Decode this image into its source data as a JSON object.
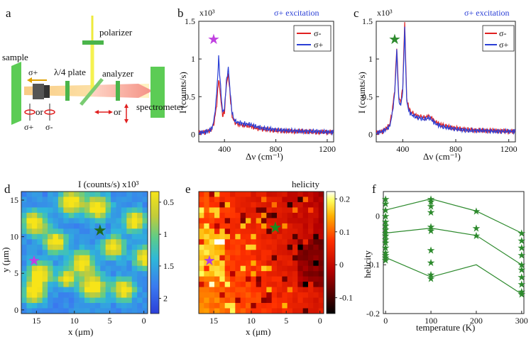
{
  "panels": {
    "a": {
      "label": "a",
      "labels": {
        "polarizer": "polarizer",
        "sample": "sample",
        "qwp": "λ/4 plate",
        "analyzer": "analyzer",
        "spectrometer": "spectrometer",
        "sigma_plus_top": "σ+",
        "or1": "or",
        "or2": "or",
        "sigma_plus_bottom": "σ+",
        "sigma_minus_bottom": "σ-"
      }
    },
    "b": {
      "label": "b",
      "type": "line",
      "title": "σ+ excitation",
      "scale_label": "x10³",
      "xlabel": "Δν (cm⁻¹)",
      "ylabel": "I (counts/s)",
      "xlim": [
        200,
        1250
      ],
      "ylim": [
        -0.1,
        1.5
      ],
      "xticks": [
        "400",
        "800",
        "1200"
      ],
      "yticks": [
        "0",
        "0.5",
        "1",
        "1.5"
      ],
      "legend": [
        "σ-",
        "σ+"
      ],
      "series": [
        {
          "name": "σ-",
          "color": "#e02020",
          "x": [
            200,
            250,
            300,
            320,
            340,
            355,
            370,
            385,
            400,
            415,
            430,
            445,
            460,
            480,
            500,
            550,
            600,
            650,
            700,
            800,
            900,
            1000,
            1100,
            1200,
            1250
          ],
          "y": [
            0.02,
            0.03,
            0.06,
            0.16,
            0.4,
            0.74,
            0.5,
            0.25,
            0.3,
            0.66,
            0.8,
            0.5,
            0.24,
            0.16,
            0.14,
            0.12,
            0.11,
            0.08,
            0.07,
            0.05,
            0.04,
            0.04,
            0.03,
            0.03,
            0.03
          ]
        },
        {
          "name": "σ+",
          "color": "#2a3fd6",
          "x": [
            200,
            250,
            300,
            320,
            340,
            355,
            370,
            385,
            400,
            415,
            430,
            445,
            460,
            480,
            500,
            550,
            600,
            650,
            700,
            800,
            900,
            1000,
            1100,
            1200,
            1250
          ],
          "y": [
            0.02,
            0.03,
            0.07,
            0.2,
            0.55,
            1.02,
            0.62,
            0.3,
            0.34,
            0.7,
            0.88,
            0.55,
            0.27,
            0.18,
            0.16,
            0.14,
            0.13,
            0.1,
            0.08,
            0.06,
            0.05,
            0.04,
            0.04,
            0.03,
            0.03
          ]
        }
      ]
    },
    "c": {
      "label": "c",
      "type": "line",
      "title": "σ+ excitation",
      "scale_label": "x10³",
      "xlabel": "Δν (cm⁻¹)",
      "ylabel": "I (counts/s)",
      "xlim": [
        200,
        1250
      ],
      "ylim": [
        -0.1,
        1.5
      ],
      "xticks": [
        "400",
        "800",
        "1200"
      ],
      "yticks": [
        "0",
        "0.5",
        "1",
        "1.5"
      ],
      "legend": [
        "σ-",
        "σ+"
      ],
      "series": [
        {
          "name": "σ-",
          "color": "#e02020",
          "x": [
            200,
            250,
            300,
            320,
            340,
            355,
            370,
            385,
            400,
            415,
            430,
            445,
            460,
            500,
            560,
            600,
            650,
            700,
            800,
            900,
            1000,
            1100,
            1200,
            1250
          ],
          "y": [
            0.02,
            0.04,
            0.12,
            0.3,
            0.6,
            1.16,
            0.5,
            0.42,
            0.62,
            1.5,
            0.48,
            0.35,
            0.3,
            0.25,
            0.22,
            0.24,
            0.16,
            0.12,
            0.08,
            0.06,
            0.05,
            0.05,
            0.04,
            0.04
          ]
        },
        {
          "name": "σ+",
          "color": "#2a3fd6",
          "x": [
            200,
            250,
            300,
            320,
            340,
            355,
            370,
            385,
            400,
            415,
            430,
            445,
            460,
            500,
            560,
            600,
            650,
            700,
            800,
            900,
            1000,
            1100,
            1200,
            1250
          ],
          "y": [
            0.02,
            0.04,
            0.1,
            0.26,
            0.55,
            1.1,
            0.45,
            0.38,
            0.56,
            1.4,
            0.44,
            0.32,
            0.27,
            0.23,
            0.2,
            0.22,
            0.14,
            0.1,
            0.07,
            0.05,
            0.05,
            0.04,
            0.04,
            0.04
          ]
        }
      ]
    },
    "d": {
      "label": "d",
      "type": "heatmap",
      "title": "I (counts/s) x10³",
      "xlabel": "x (μm)",
      "ylabel": "y (μm)",
      "xticks": [
        "15",
        "10",
        "5",
        "0"
      ],
      "yticks": [
        "0",
        "5",
        "10",
        "15"
      ],
      "colorbar": {
        "range": [
          0.2,
          2.1
        ],
        "ticks": [
          "0.5",
          "1",
          "1.5",
          "2"
        ]
      },
      "marker_purple": {
        "x": 15.5,
        "y": 7
      },
      "marker_green": {
        "x": 6,
        "y": 11.5
      }
    },
    "e": {
      "label": "e",
      "type": "heatmap",
      "title": "helicity",
      "xlabel": "x (μm)",
      "xticks": [
        "15",
        "10",
        "5",
        "0"
      ],
      "colorbar": {
        "range": [
          -0.15,
          0.22
        ],
        "ticks": [
          "0.2",
          "0.1",
          "0",
          "-0.1"
        ]
      },
      "marker_purple": {
        "x": 16,
        "y": 7
      },
      "marker_green": {
        "x": 6.5,
        "y": 11.5
      }
    },
    "f": {
      "label": "f",
      "type": "scatter",
      "xlabel": "temperature (K)",
      "ylabel": "helicity",
      "xlim": [
        -5,
        305
      ],
      "ylim": [
        -0.2,
        0.05
      ],
      "xticks": [
        "0",
        "100",
        "200",
        "300"
      ],
      "yticks": [
        "0",
        "-0.1",
        "-0.2"
      ],
      "color": "#2d8a2d",
      "lines": [
        {
          "x": [
            0,
            100,
            200,
            300
          ],
          "y": [
            0.012,
            0.035,
            0.01,
            -0.035
          ]
        },
        {
          "x": [
            0,
            100,
            200,
            300
          ],
          "y": [
            -0.035,
            -0.025,
            -0.04,
            -0.1
          ]
        },
        {
          "x": [
            0,
            100,
            200,
            300
          ],
          "y": [
            -0.085,
            -0.125,
            -0.1,
            -0.16
          ]
        }
      ],
      "points": {
        "x": [
          0,
          0,
          0,
          0,
          0,
          0,
          0,
          0,
          0,
          0,
          0,
          0,
          0,
          0,
          0,
          0,
          100,
          100,
          100,
          100,
          100,
          100,
          100,
          100,
          100,
          100,
          200,
          200,
          200,
          300,
          300,
          300,
          300,
          300,
          300,
          300,
          300,
          300,
          300
        ],
        "y": [
          0.035,
          0.025,
          0.012,
          0.0,
          -0.012,
          -0.02,
          -0.028,
          -0.035,
          -0.04,
          -0.048,
          -0.055,
          -0.065,
          -0.075,
          -0.08,
          -0.085,
          -0.09,
          0.035,
          0.03,
          0.02,
          0.008,
          -0.022,
          -0.03,
          -0.07,
          -0.095,
          -0.12,
          -0.128,
          0.01,
          -0.025,
          -0.04,
          -0.035,
          -0.05,
          -0.065,
          -0.08,
          -0.1,
          -0.11,
          -0.125,
          -0.14,
          -0.155,
          -0.16
        ]
      }
    }
  }
}
